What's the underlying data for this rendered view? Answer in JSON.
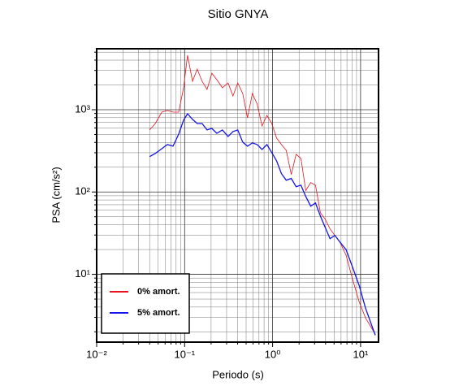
{
  "chart_data": {
    "type": "line",
    "title": "Sitio GNYA",
    "xlabel": "Periodo (s)",
    "ylabel": "PSA (cm/s²)",
    "xscale": "log",
    "yscale": "log",
    "grid": true,
    "legend": "lower left",
    "xlim": [
      0.01,
      16
    ],
    "ylim": [
      1.5,
      5500
    ],
    "xticks": [
      {
        "value": 0.01,
        "label": "10⁻²"
      },
      {
        "value": 0.1,
        "label": "10⁻¹"
      },
      {
        "value": 1,
        "label": "10⁰"
      },
      {
        "value": 10,
        "label": "10¹"
      }
    ],
    "yticks": [
      {
        "value": 10,
        "label": "10¹"
      },
      {
        "value": 100,
        "label": "10²"
      },
      {
        "value": 1000,
        "label": "10³"
      }
    ],
    "xminor": [
      0.02,
      0.03,
      0.04,
      0.05,
      0.06,
      0.07,
      0.08,
      0.09,
      0.2,
      0.3,
      0.4,
      0.5,
      0.6,
      0.7,
      0.8,
      0.9,
      2,
      3,
      4,
      5,
      6,
      7,
      8,
      9
    ],
    "yminor": [
      2,
      3,
      4,
      5,
      6,
      7,
      8,
      9,
      20,
      30,
      40,
      50,
      60,
      70,
      80,
      90,
      200,
      300,
      400,
      500,
      600,
      700,
      800,
      900,
      2000,
      3000,
      4000,
      5000
    ],
    "x": [
      0.04,
      0.0464,
      0.055,
      0.0637,
      0.0738,
      0.0857,
      0.0973,
      0.108,
      0.123,
      0.139,
      0.158,
      0.18,
      0.204,
      0.232,
      0.269,
      0.312,
      0.354,
      0.402,
      0.457,
      0.519,
      0.589,
      0.668,
      0.759,
      0.862,
      0.979,
      1.11,
      1.26,
      1.43,
      1.63,
      1.85,
      2.1,
      2.38,
      2.71,
      3.07,
      3.49,
      3.96,
      4.5,
      5.11,
      5.8,
      6.87,
      8.15,
      9.64,
      11.4,
      14.7
    ],
    "series": [
      {
        "name": "0% amort.",
        "color": "#e8141c",
        "width": 0.8,
        "values": [
          568,
          680,
          934,
          978,
          934,
          934,
          1846,
          4571,
          2213,
          3111,
          2213,
          1762,
          2775,
          2316,
          1846,
          2113,
          1469,
          2113,
          1573,
          796,
          1573,
          1172,
          635,
          853,
          680,
          452,
          377,
          321,
          163,
          287,
          256,
          104,
          130,
          121,
          56.1,
          46.8,
          35.6,
          29.7,
          24.8,
          16.9,
          8.53,
          4.62,
          2.94,
          1.87
        ]
      },
      {
        "name": "5% amort.",
        "color": "#1414e8",
        "width": 1.3,
        "values": [
          269,
          294,
          336,
          377,
          360,
          506,
          745,
          893,
          762,
          680,
          680,
          568,
          593,
          517,
          568,
          473,
          542,
          568,
          404,
          360,
          395,
          377,
          329,
          377,
          301,
          239,
          167,
          139,
          146,
          116,
          121,
          88.3,
          67.3,
          73.6,
          51.2,
          37.2,
          27.1,
          29.7,
          24.8,
          19.8,
          12.0,
          7.28,
          3.85,
          1.82
        ]
      }
    ]
  }
}
